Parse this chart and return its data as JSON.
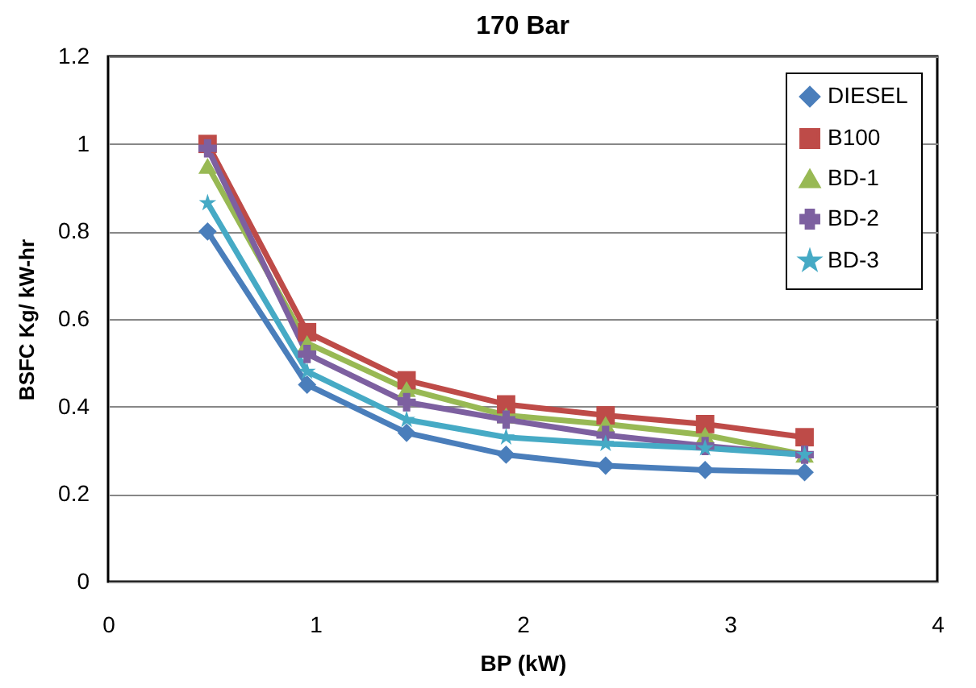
{
  "chart_data": {
    "type": "line",
    "title": "170 Bar",
    "xlabel": "BP  (kW)",
    "ylabel": "BSFC Kg/ kW-hr",
    "x": [
      0.48,
      0.96,
      1.44,
      1.92,
      2.4,
      2.88,
      3.36
    ],
    "series": [
      {
        "name": "DIESEL",
        "color": "#4a7ebb",
        "marker": "diamond",
        "values": [
          0.8,
          0.45,
          0.34,
          0.29,
          0.265,
          0.255,
          0.25
        ]
      },
      {
        "name": "B100",
        "color": "#be4b48",
        "marker": "square",
        "values": [
          1.0,
          0.57,
          0.46,
          0.405,
          0.38,
          0.36,
          0.33
        ]
      },
      {
        "name": "BD-1",
        "color": "#98b954",
        "marker": "triangle",
        "values": [
          0.95,
          0.545,
          0.44,
          0.38,
          0.36,
          0.335,
          0.29
        ]
      },
      {
        "name": "BD-2",
        "color": "#7d60a0",
        "marker": "cross",
        "values": [
          0.99,
          0.52,
          0.41,
          0.37,
          0.335,
          0.31,
          0.29
        ]
      },
      {
        "name": "BD-3",
        "color": "#46aac5",
        "marker": "star",
        "values": [
          0.865,
          0.48,
          0.37,
          0.33,
          0.315,
          0.305,
          0.29
        ]
      }
    ],
    "xlim": [
      0,
      4
    ],
    "xticks": [
      0,
      1,
      2,
      3,
      4
    ],
    "ylim": [
      0,
      1.2
    ],
    "yticks": [
      0,
      0.2,
      0.4,
      0.6,
      0.8,
      1,
      1.2
    ],
    "grid": "y",
    "legend": "top right",
    "line_style": "solid"
  }
}
